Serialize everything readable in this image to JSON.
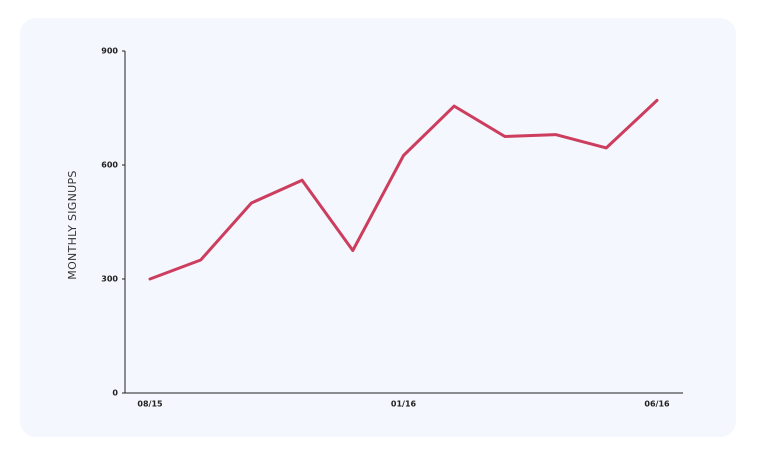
{
  "chart_data": {
    "type": "line",
    "y_label": "MONTHLY SIGNUPS",
    "categories": [
      "08/15",
      null,
      null,
      null,
      null,
      "01/16",
      null,
      null,
      null,
      null,
      "06/16"
    ],
    "values": [
      300,
      350,
      500,
      560,
      375,
      625,
      755,
      675,
      680,
      645,
      770
    ],
    "color": "#cc3d5e",
    "ylim": [
      0,
      900
    ],
    "yticks": [
      0,
      300,
      600,
      900
    ]
  }
}
